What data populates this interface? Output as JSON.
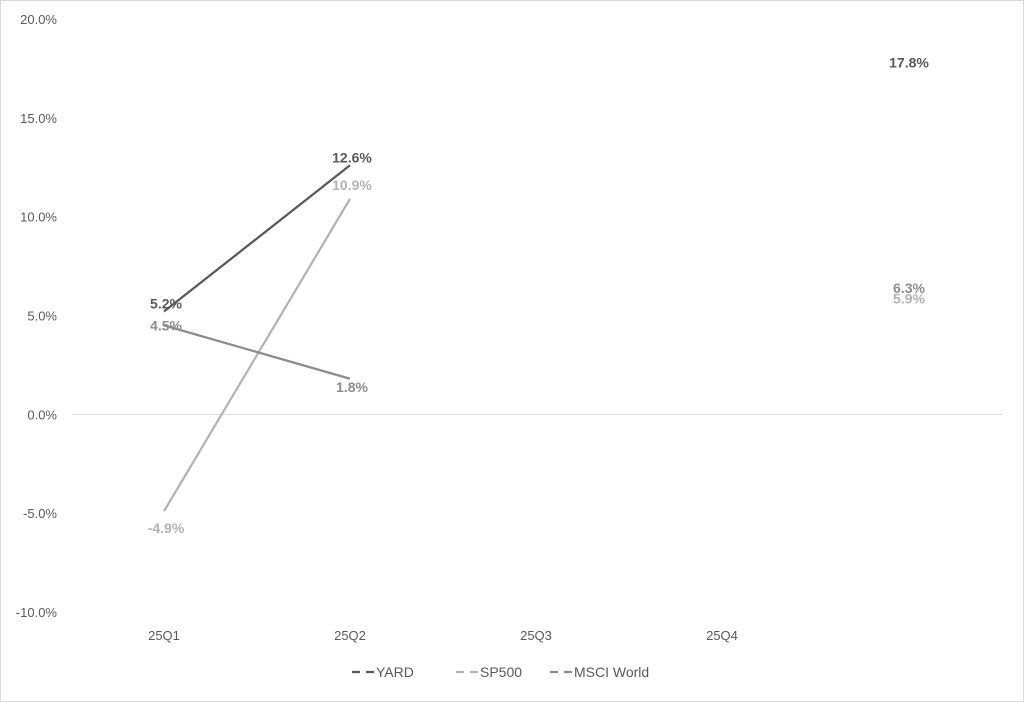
{
  "chart_data": {
    "type": "line",
    "categories": [
      "25Q1",
      "25Q2",
      "25Q3",
      "25Q4"
    ],
    "y_ticks": [
      "20.0%",
      "15.0%",
      "10.0%",
      "5.0%",
      "0.0%",
      "-5.0%",
      "-10.0%"
    ],
    "ylim": [
      -10,
      20
    ],
    "grid": false,
    "zero_line": true,
    "legend_position": "bottom",
    "series": [
      {
        "name": "YARD",
        "color": "#595959",
        "values": [
          5.2,
          12.6,
          null,
          null
        ],
        "labels": [
          "5.2%",
          "12.6%"
        ],
        "extra_label": {
          "text": "17.8%",
          "y": 17.8
        }
      },
      {
        "name": "SP500",
        "color": "#b3b3b3",
        "values": [
          -4.9,
          10.9,
          null,
          null
        ],
        "labels": [
          "-4.9%",
          "10.9%"
        ],
        "extra_label": {
          "text": "5.9%",
          "y": 5.9
        }
      },
      {
        "name": "MSCI World",
        "color": "#8c8c8c",
        "values": [
          4.5,
          1.8,
          null,
          null
        ],
        "labels": [
          "4.5%",
          "1.8%"
        ],
        "extra_label": {
          "text": "6.3%",
          "y": 6.3
        }
      }
    ]
  }
}
